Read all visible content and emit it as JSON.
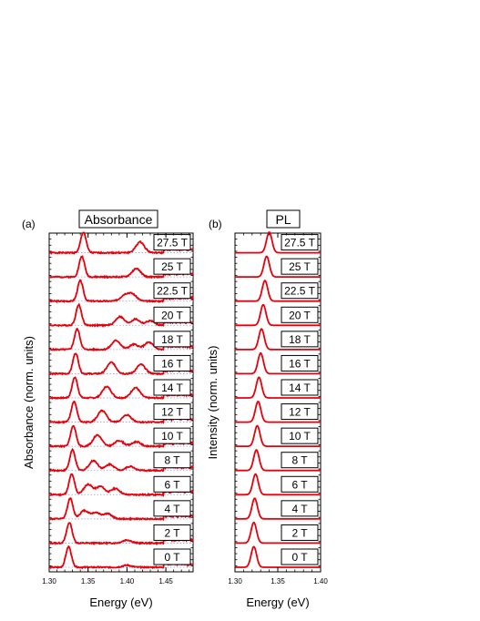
{
  "chart_data": [
    {
      "type": "line",
      "panel_label": "(a)",
      "title": "Absorbance",
      "xlabel": "Energy (eV)",
      "ylabel": "Absorbance (norm. units)",
      "xlim": [
        1.3,
        1.485
      ],
      "xticks": [
        "1.30",
        "1.35",
        "1.40",
        "1.45"
      ],
      "grid": "dotted baseline per trace",
      "color": "#e8000b",
      "series": [
        {
          "name": "27.5 T",
          "field": 27.5,
          "peaks": [
            [
              1.344,
              1.0
            ],
            [
              1.417,
              0.52
            ]
          ]
        },
        {
          "name": "25 T",
          "field": 25,
          "peaks": [
            [
              1.342,
              1.0
            ],
            [
              1.412,
              0.4
            ]
          ]
        },
        {
          "name": "22.5 T",
          "field": 22.5,
          "peaks": [
            [
              1.34,
              1.0
            ],
            [
              1.397,
              0.28
            ],
            [
              1.407,
              0.32
            ]
          ]
        },
        {
          "name": "20 T",
          "field": 20,
          "peaks": [
            [
              1.338,
              1.0
            ],
            [
              1.391,
              0.42
            ],
            [
              1.411,
              0.3
            ],
            [
              1.43,
              0.22
            ]
          ]
        },
        {
          "name": "18 T",
          "field": 18,
          "peaks": [
            [
              1.336,
              1.0
            ],
            [
              1.386,
              0.44
            ],
            [
              1.409,
              0.25
            ],
            [
              1.428,
              0.35
            ]
          ]
        },
        {
          "name": "16 T",
          "field": 16,
          "peaks": [
            [
              1.334,
              1.0
            ],
            [
              1.38,
              0.55
            ],
            [
              1.418,
              0.45
            ]
          ]
        },
        {
          "name": "14 T",
          "field": 14,
          "peaks": [
            [
              1.333,
              1.0
            ],
            [
              1.374,
              0.55
            ],
            [
              1.411,
              0.5
            ]
          ]
        },
        {
          "name": "12 T",
          "field": 12,
          "peaks": [
            [
              1.332,
              1.0
            ],
            [
              1.368,
              0.55
            ],
            [
              1.4,
              0.35
            ]
          ]
        },
        {
          "name": "10 T",
          "field": 10,
          "peaks": [
            [
              1.331,
              1.0
            ],
            [
              1.362,
              0.55
            ],
            [
              1.39,
              0.28
            ],
            [
              1.412,
              0.22
            ]
          ]
        },
        {
          "name": "8 T",
          "field": 8,
          "peaks": [
            [
              1.33,
              1.0
            ],
            [
              1.357,
              0.48
            ],
            [
              1.378,
              0.3
            ],
            [
              1.404,
              0.2
            ]
          ]
        },
        {
          "name": "6 T",
          "field": 6,
          "peaks": [
            [
              1.329,
              1.0
            ],
            [
              1.35,
              0.5
            ],
            [
              1.366,
              0.4
            ],
            [
              1.385,
              0.3
            ]
          ]
        },
        {
          "name": "4 T",
          "field": 4,
          "peaks": [
            [
              1.327,
              1.0
            ],
            [
              1.345,
              0.4
            ],
            [
              1.36,
              0.3
            ],
            [
              1.375,
              0.25
            ]
          ]
        },
        {
          "name": "2 T",
          "field": 2,
          "peaks": [
            [
              1.326,
              1.0
            ],
            [
              1.4,
              0.15
            ]
          ]
        },
        {
          "name": "0 T",
          "field": 0,
          "peaks": [
            [
              1.325,
              1.0
            ],
            [
              1.4,
              0.1
            ]
          ]
        }
      ]
    },
    {
      "type": "line",
      "panel_label": "(b)",
      "title": "PL",
      "xlabel": "Energy (eV)",
      "ylabel": "Intensity (norm. units)",
      "xlim": [
        1.3,
        1.4
      ],
      "xticks": [
        "1.30",
        "1.35",
        "1.40"
      ],
      "color": "#e8000b",
      "series": [
        {
          "name": "27.5 T",
          "peak": 1.34
        },
        {
          "name": "25 T",
          "peak": 1.337
        },
        {
          "name": "22.5 T",
          "peak": 1.335
        },
        {
          "name": "20 T",
          "peak": 1.333
        },
        {
          "name": "18 T",
          "peak": 1.331
        },
        {
          "name": "16 T",
          "peak": 1.33
        },
        {
          "name": "14 T",
          "peak": 1.328
        },
        {
          "name": "12 T",
          "peak": 1.327
        },
        {
          "name": "10 T",
          "peak": 1.326
        },
        {
          "name": "8 T",
          "peak": 1.325
        },
        {
          "name": "6 T",
          "peak": 1.324
        },
        {
          "name": "4 T",
          "peak": 1.323
        },
        {
          "name": "2 T",
          "peak": 1.322
        },
        {
          "name": "0 T",
          "peak": 1.322
        }
      ]
    }
  ]
}
